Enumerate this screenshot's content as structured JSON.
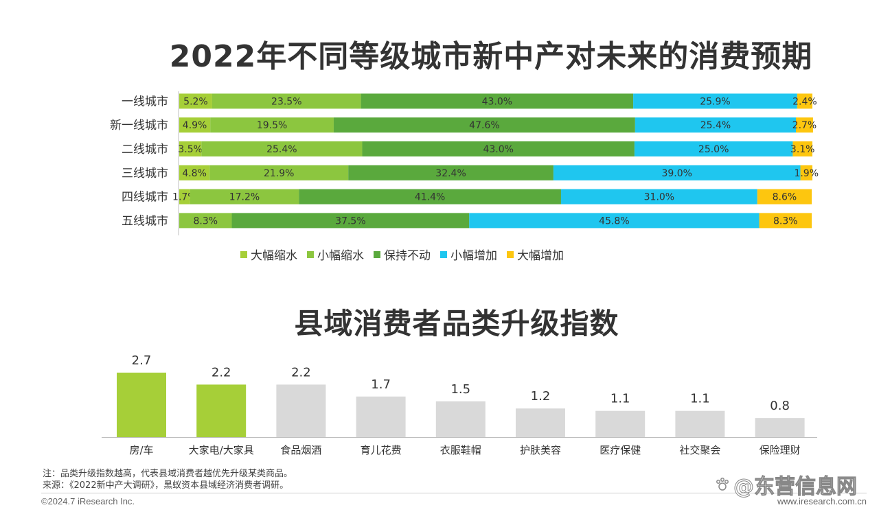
{
  "titles": {
    "top": "2022年不同等级城市新中产对未来的消费预期",
    "bottom": "县域消费者品类升级指数"
  },
  "colors": {
    "big_decrease": "#a6cf38",
    "small_decrease": "#8cc63f",
    "unchanged": "#5aa93d",
    "small_increase": "#1fc6ef",
    "big_increase": "#fdc60f",
    "highlight_bar": "#a6cf38",
    "grey_bar": "#d9d9d9"
  },
  "chart_data": [
    {
      "type": "bar",
      "orientation": "horizontal-stacked-100",
      "title": "2022年不同等级城市新中产对未来的消费预期",
      "categories": [
        "一线城市",
        "新一线城市",
        "二线城市",
        "三线城市",
        "四线城市",
        "五线城市"
      ],
      "series": [
        {
          "name": "大幅缩水",
          "color": "#a6cf38",
          "values": [
            5.2,
            4.9,
            3.5,
            4.8,
            1.7,
            0
          ]
        },
        {
          "name": "小幅缩水",
          "color": "#8cc63f",
          "values": [
            23.5,
            19.5,
            25.4,
            21.9,
            17.2,
            8.3
          ]
        },
        {
          "name": "保持不动",
          "color": "#5aa93d",
          "values": [
            43.0,
            47.6,
            43.0,
            32.4,
            41.4,
            37.5
          ]
        },
        {
          "name": "小幅增加",
          "color": "#1fc6ef",
          "values": [
            25.9,
            25.4,
            25.0,
            39.0,
            31.0,
            45.8
          ]
        },
        {
          "name": "大幅增加",
          "color": "#fdc60f",
          "values": [
            2.4,
            2.7,
            3.1,
            1.9,
            8.6,
            8.3
          ]
        }
      ],
      "labels": [
        [
          "5.2%",
          "23.5%",
          "43.0%",
          "25.9%",
          "2.4%"
        ],
        [
          "4.9%",
          "19.5%",
          "47.6%",
          "25.4%",
          "2.7%"
        ],
        [
          "3.5%",
          "25.4%",
          "43.0%",
          "25.0%",
          "3.1%"
        ],
        [
          "4.8%",
          "21.9%",
          "32.4%",
          "39.0%",
          "1.9%"
        ],
        [
          "1.7%",
          "17.2%",
          "41.4%",
          "31.0%",
          "8.6%"
        ],
        [
          "",
          "8.3%",
          "37.5%",
          "45.8%",
          "8.3%"
        ]
      ],
      "legend": "bottom",
      "grid": false
    },
    {
      "type": "bar",
      "title": "县域消费者品类升级指数",
      "categories": [
        "房/车",
        "大家电/大家具",
        "食品烟酒",
        "育儿花费",
        "衣服鞋帽",
        "护肤美容",
        "医疗保健",
        "社交聚会",
        "保险理财"
      ],
      "values": [
        2.7,
        2.2,
        2.2,
        1.7,
        1.5,
        1.2,
        1.1,
        1.1,
        0.8
      ],
      "value_labels": [
        "2.7",
        "2.2",
        "2.2",
        "1.7",
        "1.5",
        "1.2",
        "1.1",
        "1.1",
        "0.8"
      ],
      "highlighted": [
        true,
        true,
        false,
        false,
        false,
        false,
        false,
        false,
        false
      ],
      "ylim": [
        0,
        2.7
      ],
      "grid": false
    }
  ],
  "notes": {
    "note": "注：品类升级指数越高，代表县域消费者越优先升级某类商品。",
    "source": "来源：《2022新中产大调研》，黑蚁资本县域经济消费者调研。"
  },
  "footer": {
    "copyright": "©2024.7 iResearch Inc.",
    "website": "www.iresearch.com.cn",
    "watermark": "@东营信息网"
  }
}
